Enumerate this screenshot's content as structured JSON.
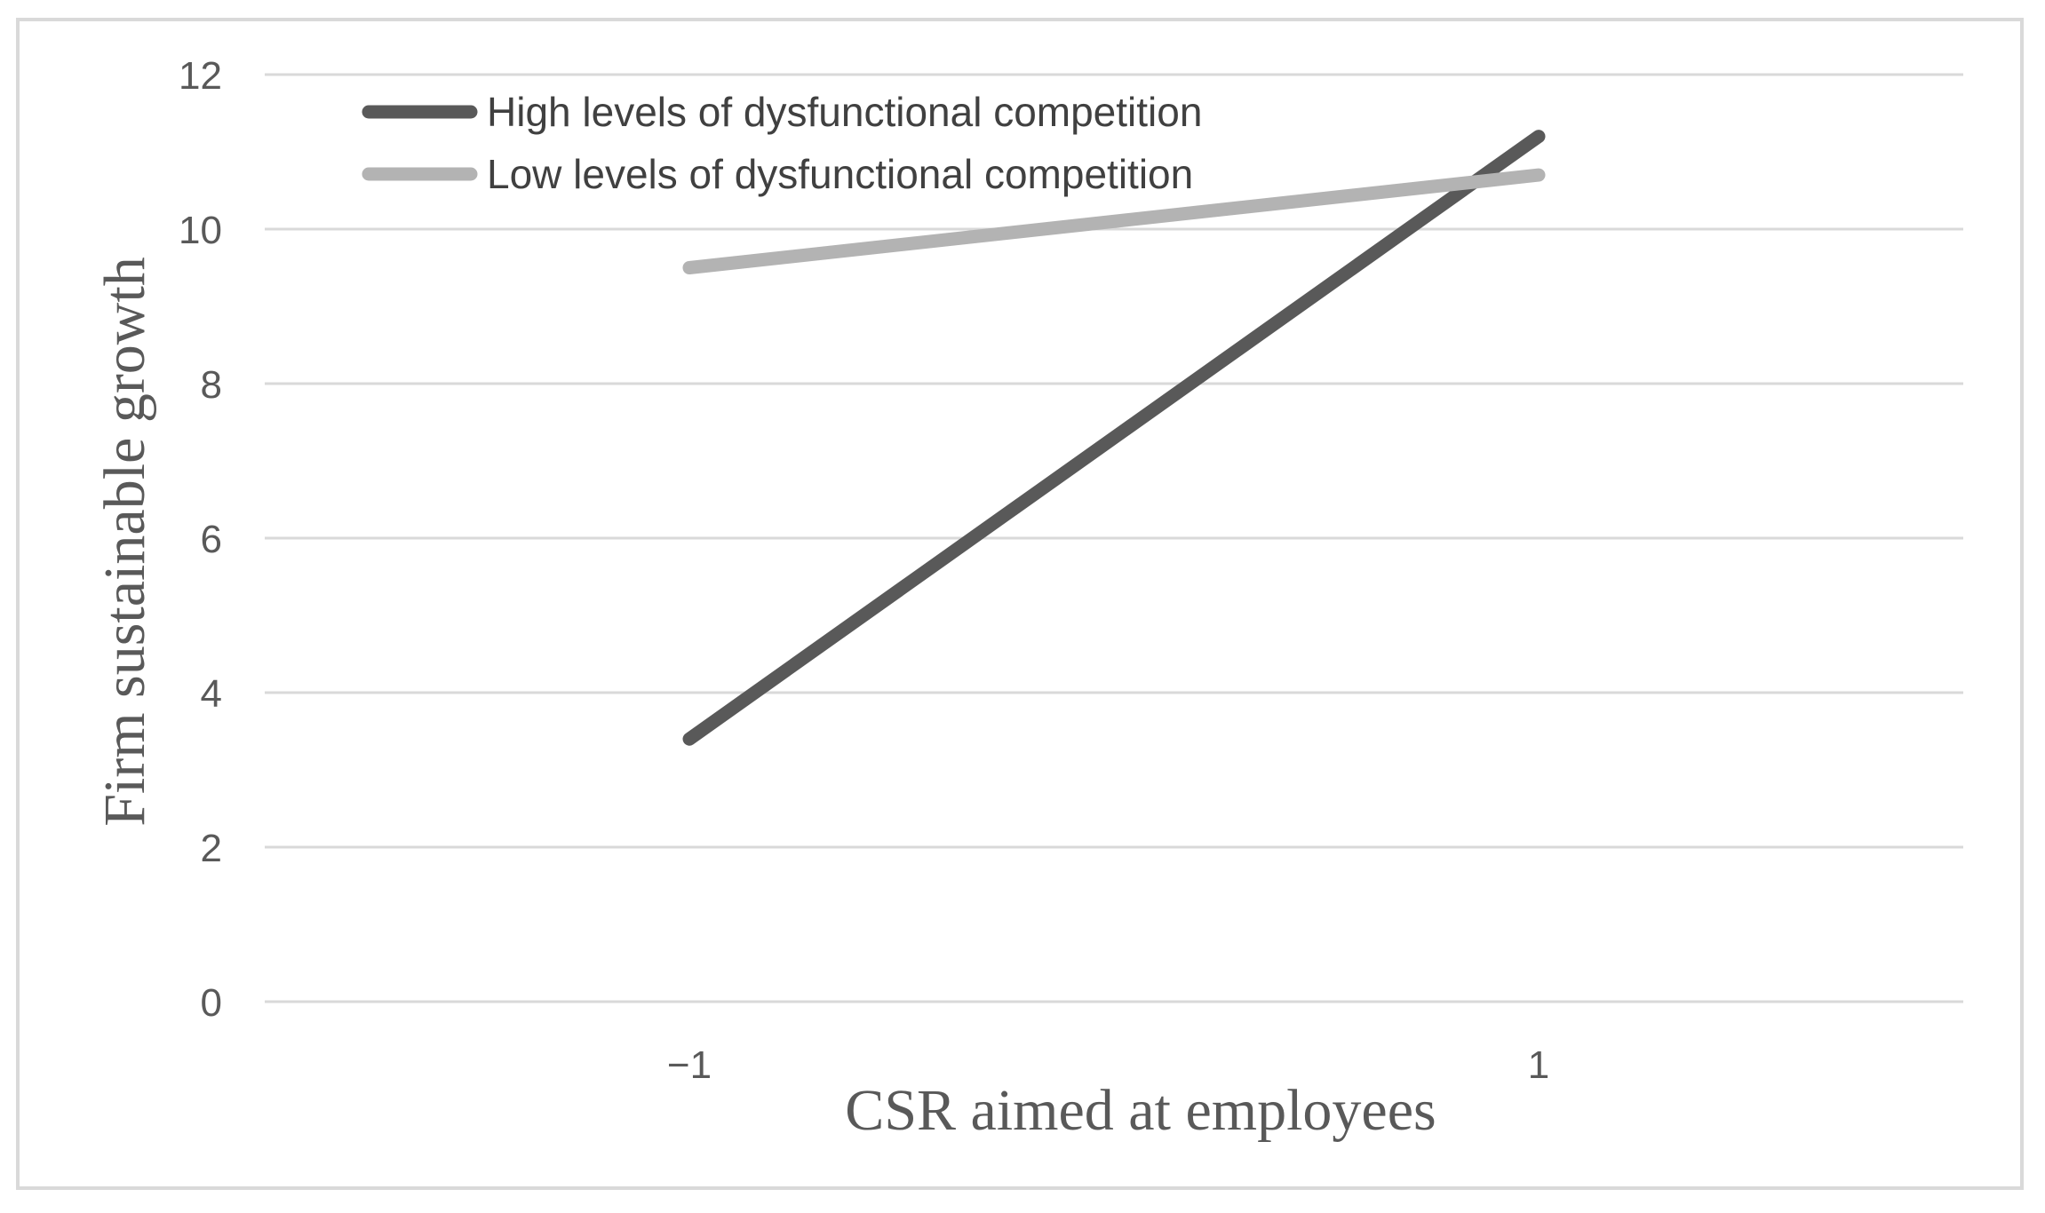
{
  "chart_data": {
    "type": "line",
    "x": [
      "−1",
      "1"
    ],
    "series": [
      {
        "name": "High levels of dysfunctional competition",
        "values": [
          3.4,
          11.2
        ],
        "color": "#595959"
      },
      {
        "name": "Low levels of dysfunctional competition",
        "values": [
          9.5,
          10.7
        ],
        "color": "#b3b3b3"
      }
    ],
    "xlabel": "CSR aimed at employees",
    "ylabel": "Firm sustainable growth",
    "ylim": [
      0,
      12
    ],
    "yticks": [
      "0",
      "2",
      "4",
      "6",
      "8",
      "10",
      "12"
    ],
    "grid": true,
    "legend": "top-left"
  }
}
